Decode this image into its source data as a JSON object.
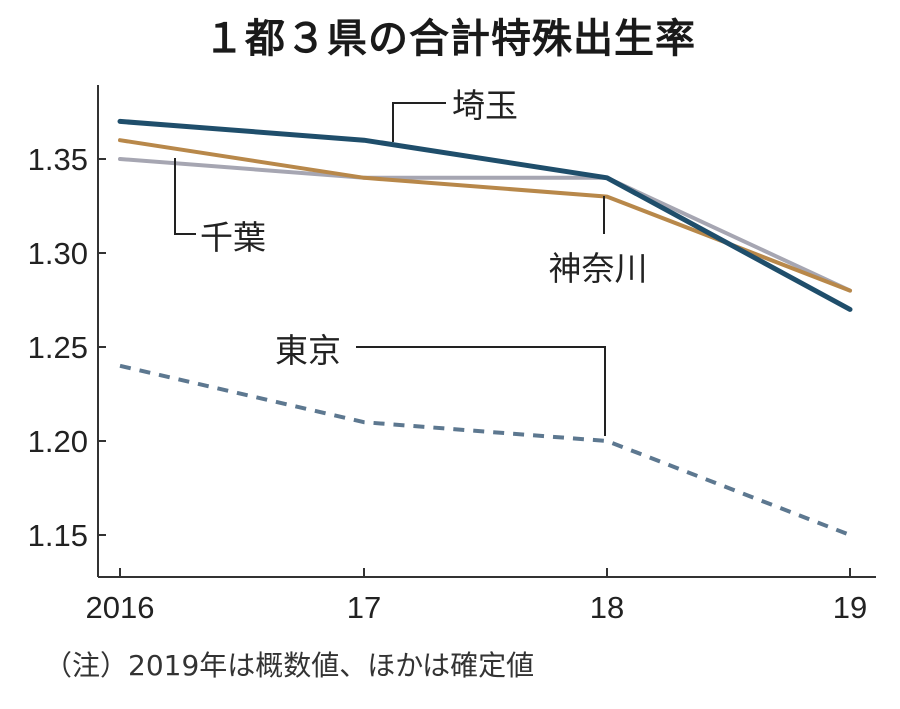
{
  "title": "１都３県の合計特殊出生率",
  "note": "（注）2019年は概数値、ほかは確定値",
  "colors": {
    "saitama": "#1f4e6b",
    "kanagawa": "#b8884a",
    "chiba": "#a6a6b2",
    "tokyo": "#5d7890",
    "axis": "#333333",
    "text": "#222222"
  },
  "chart_data": {
    "type": "line",
    "x": [
      "2016",
      "17",
      "18",
      "19"
    ],
    "yticks": [
      "1.15",
      "1.20",
      "1.25",
      "1.30",
      "1.35"
    ],
    "ylim": [
      1.125,
      1.395
    ],
    "grid": false,
    "series": [
      {
        "name": "埼玉",
        "values": [
          1.37,
          1.36,
          1.34,
          1.27
        ],
        "style": "solid",
        "color": "#1f4e6b"
      },
      {
        "name": "神奈川",
        "values": [
          1.36,
          1.34,
          1.33,
          1.28
        ],
        "style": "solid",
        "color": "#b8884a"
      },
      {
        "name": "千葉",
        "values": [
          1.35,
          1.34,
          1.34,
          1.28
        ],
        "style": "solid",
        "color": "#a6a6b2"
      },
      {
        "name": "東京",
        "values": [
          1.24,
          1.21,
          1.2,
          1.15
        ],
        "style": "dashed",
        "color": "#5d7890"
      }
    ]
  }
}
